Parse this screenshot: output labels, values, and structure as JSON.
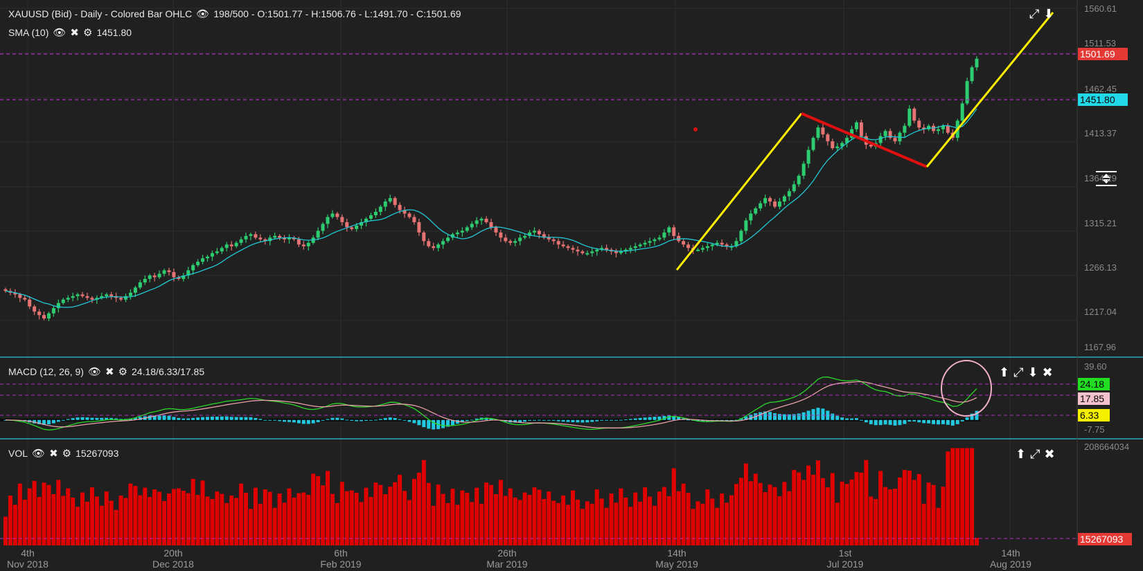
{
  "header": {
    "symbol": "XAUUSD (Bid) - Daily - Colored Bar OHLC",
    "ohlc": "198/500 - O:1501.77 - H:1506.76 - L:1491.70 - C:1501.69"
  },
  "sma": {
    "label": "SMA (10)",
    "value": "1451.80"
  },
  "macd": {
    "label": "MACD (12, 26, 9)",
    "value": "24.18/6.33/17.85",
    "tags": {
      "macd": "24.18",
      "signal": "17.85",
      "hist": "6.33"
    },
    "axis": [
      "39.60",
      "-7.75"
    ]
  },
  "vol": {
    "label": "VOL",
    "value": "15267093",
    "axis_top": "208664034",
    "tag": "15267093"
  },
  "price_axis": [
    "1560.61",
    "1511.53",
    "1462.45",
    "1413.37",
    "1364.29",
    "1315.21",
    "1266.13",
    "1217.04",
    "1167.96"
  ],
  "price_tags": {
    "last": "1501.69",
    "sma": "1451.80"
  },
  "x_labels": [
    {
      "top": "4th",
      "bottom": "Nov 2018"
    },
    {
      "top": "20th",
      "bottom": "Dec 2018"
    },
    {
      "top": "6th",
      "bottom": "Feb 2019"
    },
    {
      "top": "26th",
      "bottom": "Mar 2019"
    },
    {
      "top": "14th",
      "bottom": "May 2019"
    },
    {
      "top": "1st",
      "bottom": "Jul 2019"
    },
    {
      "top": "14th",
      "bottom": "Aug 2019"
    }
  ],
  "icons": [
    "eye-icon",
    "close-icon",
    "gear-icon",
    "expand-icon",
    "arrow-up-icon",
    "arrow-down-icon"
  ],
  "colors": {
    "up": "#2ecc71",
    "down": "#e57373",
    "sma": "#22c8d6",
    "macd": "#2bd62b",
    "signal": "#e8a0a8",
    "hist": "#22c8e0",
    "vol": "#e00000",
    "trend_yellow": "#ffee00",
    "trend_red": "#e01010",
    "level": "#b030c0"
  },
  "chart_data": {
    "type": "ohlc",
    "title": "XAUUSD (Bid) - Daily - Colored Bar OHLC",
    "x_range": [
      "2018-10-29",
      "2019-07-26"
    ],
    "ylim": [
      1167.96,
      1560.61
    ],
    "close_series": [
      1232,
      1230,
      1228,
      1224,
      1222,
      1214,
      1208,
      1204,
      1200,
      1206,
      1212,
      1218,
      1222,
      1224,
      1226,
      1228,
      1226,
      1224,
      1222,
      1224,
      1226,
      1228,
      1226,
      1224,
      1222,
      1226,
      1230,
      1236,
      1242,
      1246,
      1250,
      1248,
      1252,
      1256,
      1254,
      1248,
      1246,
      1250,
      1256,
      1262,
      1266,
      1270,
      1272,
      1276,
      1278,
      1282,
      1286,
      1284,
      1288,
      1292,
      1296,
      1298,
      1294,
      1292,
      1290,
      1294,
      1296,
      1294,
      1292,
      1294,
      1292,
      1286,
      1284,
      1288,
      1294,
      1302,
      1310,
      1318,
      1322,
      1318,
      1312,
      1306,
      1304,
      1308,
      1312,
      1316,
      1320,
      1324,
      1330,
      1336,
      1340,
      1332,
      1326,
      1322,
      1318,
      1312,
      1300,
      1290,
      1284,
      1282,
      1286,
      1290,
      1294,
      1298,
      1300,
      1302,
      1306,
      1310,
      1314,
      1316,
      1312,
      1306,
      1300,
      1294,
      1290,
      1288,
      1290,
      1294,
      1296,
      1300,
      1302,
      1298,
      1294,
      1292,
      1290,
      1286,
      1284,
      1282,
      1280,
      1278,
      1276,
      1276,
      1278,
      1280,
      1282,
      1280,
      1278,
      1276,
      1278,
      1280,
      1282,
      1284,
      1286,
      1288,
      1290,
      1292,
      1294,
      1300,
      1306,
      1296,
      1290,
      1286,
      1282,
      1280,
      1280,
      1282,
      1284,
      1286,
      1288,
      1286,
      1284,
      1284,
      1290,
      1302,
      1314,
      1322,
      1328,
      1334,
      1340,
      1336,
      1330,
      1336,
      1342,
      1348,
      1356,
      1366,
      1380,
      1396,
      1410,
      1422,
      1414,
      1406,
      1398,
      1400,
      1404,
      1410,
      1420,
      1428,
      1412,
      1402,
      1400,
      1404,
      1412,
      1418,
      1410,
      1406,
      1416,
      1424,
      1444,
      1430,
      1422,
      1420,
      1424,
      1418,
      1420,
      1424,
      1416,
      1410,
      1430,
      1450,
      1476,
      1492,
      1502
    ],
    "sma_last": 1451.8,
    "last": {
      "open": 1501.77,
      "high": 1506.76,
      "low": 1491.7,
      "close": 1501.69
    },
    "macd": {
      "macd": 24.18,
      "signal": 17.85,
      "histogram": 6.33,
      "ylim": [
        -7.75,
        39.6
      ]
    },
    "volume": {
      "last": 15267093,
      "ymax": 208664034
    }
  }
}
